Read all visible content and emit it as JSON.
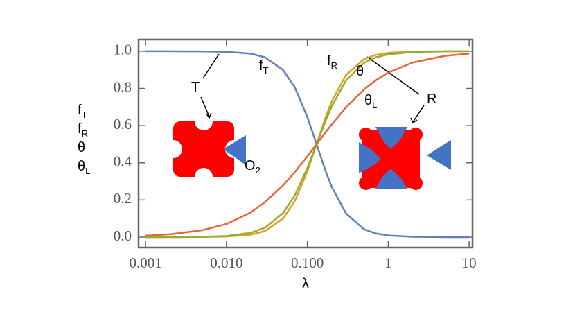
{
  "chart_data": {
    "type": "line",
    "x_label": "λ",
    "x": [
      0.001,
      0.002,
      0.005,
      0.01,
      0.02,
      0.03,
      0.05,
      0.07,
      0.1,
      0.13,
      0.17,
      0.2,
      0.3,
      0.5,
      0.7,
      1,
      2,
      5,
      10
    ],
    "series": [
      {
        "name": "f",
        "name_sub": "T",
        "color": "#5e81b5",
        "values": [
          1.0,
          1.0,
          0.999,
          0.997,
          0.987,
          0.967,
          0.9,
          0.806,
          0.646,
          0.5,
          0.35,
          0.271,
          0.128,
          0.043,
          0.02,
          0.009,
          0.002,
          0.0,
          0.0
        ]
      },
      {
        "name": "f",
        "name_sub": "R",
        "color": "#e19c24",
        "values": [
          0.0,
          0.0,
          0.001,
          0.003,
          0.013,
          0.033,
          0.1,
          0.194,
          0.354,
          0.5,
          0.65,
          0.729,
          0.872,
          0.957,
          0.98,
          0.991,
          0.998,
          1.0,
          1.0
        ]
      },
      {
        "name": "θ",
        "color": "#8fb032",
        "values": [
          0.0,
          0.0002,
          0.0015,
          0.0059,
          0.0231,
          0.051,
          0.129,
          0.225,
          0.372,
          0.5,
          0.631,
          0.703,
          0.842,
          0.937,
          0.967,
          0.983,
          0.996,
          0.999,
          1.0
        ]
      },
      {
        "name": "θ",
        "name_sub": "L",
        "color": "#eb6235",
        "values": [
          0.0076,
          0.0152,
          0.037,
          0.071,
          0.133,
          0.188,
          0.278,
          0.35,
          0.435,
          0.5,
          0.567,
          0.606,
          0.698,
          0.794,
          0.843,
          0.885,
          0.939,
          0.975,
          0.987
        ]
      }
    ],
    "annotations": [
      {
        "text": "f",
        "sub": "T"
      },
      {
        "text": "T"
      },
      {
        "text": "f",
        "sub": "R"
      },
      {
        "text": "θ"
      },
      {
        "text": "θ",
        "sub": "L"
      },
      {
        "text": "R"
      },
      {
        "text": "O",
        "sub": "2"
      }
    ],
    "log_x": true,
    "xlim": [
      0.00082,
      11
    ],
    "ylim": [
      -0.056,
      1.063
    ],
    "xticks": [
      0.001,
      {
        "value": 0.01,
        "label": "0.010"
      },
      {
        "value": 0.1,
        "label": "0.100"
      },
      1,
      10
    ],
    "yticks": [
      {
        "value": 0,
        "label": "0.0"
      },
      {
        "value": 0.2,
        "label": "0.2"
      },
      {
        "value": 0.4,
        "label": "0.4"
      },
      {
        "value": 0.6,
        "label": "0.6"
      },
      {
        "value": 0.8,
        "label": "0.8"
      },
      {
        "value": 1,
        "label": "1.0"
      }
    ]
  }
}
